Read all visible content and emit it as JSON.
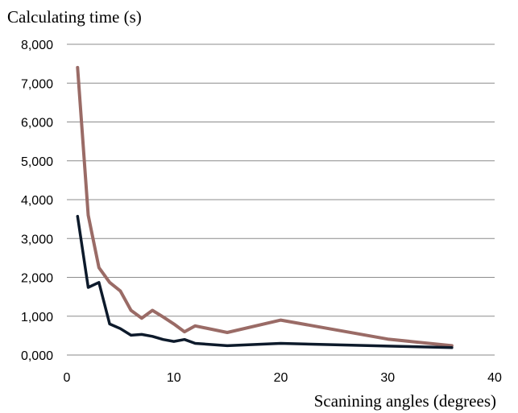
{
  "chart_data": {
    "type": "line",
    "title": "",
    "ylabel": "Calculating time (s)",
    "xlabel": "Scanining angles (degrees)",
    "xlim": [
      0,
      40
    ],
    "ylim": [
      0,
      8000
    ],
    "xticks": [
      0,
      10,
      20,
      30,
      40
    ],
    "xtick_labels": [
      "0",
      "10",
      "20",
      "30",
      "40"
    ],
    "yticks": [
      0,
      1000,
      2000,
      3000,
      4000,
      5000,
      6000,
      7000,
      8000
    ],
    "ytick_labels": [
      "0,000",
      "1,000",
      "2,000",
      "3,000",
      "4,000",
      "5,000",
      "6,000",
      "7,000",
      "8,000"
    ],
    "grid": "horizontal",
    "legend": "none",
    "series": [
      {
        "color": "#9a6b66",
        "x": [
          1,
          2,
          3,
          4,
          5,
          6,
          7,
          8,
          9,
          10,
          11,
          12,
          15,
          20,
          30,
          36
        ],
        "values": [
          7400,
          3600,
          2250,
          1870,
          1650,
          1150,
          950,
          1150,
          980,
          800,
          600,
          750,
          580,
          900,
          410,
          240
        ]
      },
      {
        "color": "#0d1a2b",
        "x": [
          1,
          2,
          3,
          4,
          5,
          6,
          7,
          8,
          9,
          10,
          11,
          12,
          15,
          20,
          30,
          36
        ],
        "values": [
          3570,
          1740,
          1870,
          800,
          680,
          510,
          530,
          480,
          400,
          350,
          400,
          300,
          240,
          300,
          230,
          190
        ]
      }
    ]
  }
}
